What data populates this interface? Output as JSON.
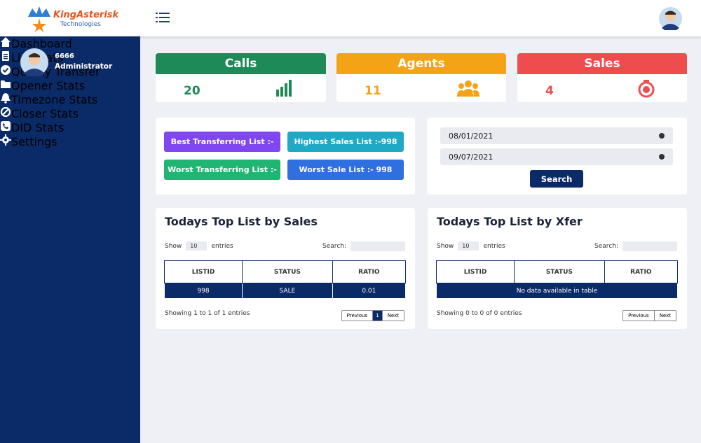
{
  "header": {
    "logo_title": "KingAsterisk",
    "logo_subtitle": "Technologies"
  },
  "sidebar": {
    "user_id": "6666",
    "user_role": "Administrator",
    "menu": [
      "Dashboard",
      "List Stats",
      "Quality Transfer",
      "Opener Stats",
      "Timezone Stats",
      "Closer Stats",
      "DID Stats",
      "Settings"
    ]
  },
  "stats": [
    {
      "title": "Calls",
      "value": 20
    },
    {
      "title": "Agents",
      "value": 11
    },
    {
      "title": "Sales",
      "value": 4
    }
  ],
  "lists": {
    "best_transferring": "Best Transferring List :-",
    "highest_sales": "Highest Sales List :-998",
    "worst_transferring": "Worst Transferring List :-",
    "worst_sale": "Worst Sale List :- 998"
  },
  "date_filter": {
    "from": "08/01/2021",
    "to": "09/07/2021",
    "button": "Search"
  },
  "tables": [
    {
      "title": "Todays Top List by Sales",
      "show_label": "Show",
      "page_size": 10,
      "entries_label": "entries",
      "search_label": "Search:",
      "columns": [
        "LISTID",
        "STATUS",
        "RATIO"
      ],
      "rows": [
        [
          998,
          "SALE",
          0.01
        ]
      ],
      "info": "Showing 1 to 1 of 1 entries",
      "pagination": [
        "Previous",
        "1",
        "Next"
      ]
    },
    {
      "title": "Todays Top List by Xfer",
      "show_label": "Show",
      "page_size": 10,
      "entries_label": "entries",
      "search_label": "Search:",
      "columns": [
        "LISTID",
        "STATUS",
        "RATIO"
      ],
      "empty_message": "No data available in table",
      "info": "Showing 0 to 0 of 0 entries",
      "pagination": [
        "Previous",
        "Next"
      ]
    }
  ]
}
